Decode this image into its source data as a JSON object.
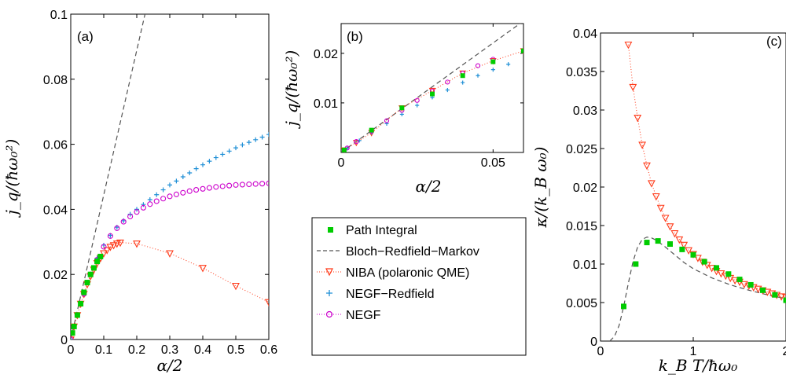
{
  "colors": {
    "path_integral": "#00cc00",
    "brm": "#555555",
    "niba": "#ff3b1a",
    "negf_redfield": "#1f8fd6",
    "negf": "#cc00cc"
  },
  "legend": [
    {
      "key": "path_integral",
      "label": "Path Integral",
      "marker": "square"
    },
    {
      "key": "brm",
      "label": "Bloch−Redfield−Markov",
      "marker": "dashed"
    },
    {
      "key": "niba",
      "label": "NIBA (polaronic QME)",
      "marker": "triangle-down"
    },
    {
      "key": "negf_redfield",
      "label": "NEGF−Redfield",
      "marker": "plus"
    },
    {
      "key": "negf",
      "label": "NEGF",
      "marker": "circle"
    }
  ],
  "chart_data": [
    {
      "id": "a",
      "panel_label": "(a)",
      "type": "scatter",
      "xlabel": "α/2",
      "ylabel": "j_q/(ħω₀²)",
      "xlim": [
        0,
        0.6
      ],
      "ylim": [
        0,
        0.1
      ],
      "xticks": [
        0,
        0.1,
        0.2,
        0.3,
        0.4,
        0.5,
        0.6
      ],
      "xtick_labels": [
        "0",
        "0.1",
        "0.2",
        "0.3",
        "0.4",
        "0.5",
        "0.6"
      ],
      "yticks": [
        0,
        0.02,
        0.04,
        0.06,
        0.08,
        0.1
      ],
      "ytick_labels": [
        "0",
        "0.02",
        "0.04",
        "0.06",
        "0.08",
        "0.1"
      ],
      "series": [
        {
          "key": "brm",
          "style": "dashed",
          "x": [
            0,
            0.225
          ],
          "y": [
            0,
            0.1
          ]
        },
        {
          "key": "niba",
          "style": "markers+dotted",
          "x": [
            0,
            0.01,
            0.02,
            0.03,
            0.04,
            0.05,
            0.06,
            0.07,
            0.08,
            0.09,
            0.1,
            0.11,
            0.12,
            0.13,
            0.14,
            0.15,
            0.2,
            0.3,
            0.4,
            0.5,
            0.6
          ],
          "y": [
            0,
            0.004,
            0.0075,
            0.011,
            0.014,
            0.017,
            0.0195,
            0.0215,
            0.0235,
            0.025,
            0.0265,
            0.0275,
            0.0285,
            0.029,
            0.0295,
            0.0298,
            0.0295,
            0.0265,
            0.022,
            0.0165,
            0.0115
          ]
        },
        {
          "key": "negf_redfield",
          "style": "markers",
          "x": [
            0,
            0.02,
            0.04,
            0.06,
            0.08,
            0.1,
            0.12,
            0.14,
            0.16,
            0.18,
            0.2,
            0.22,
            0.24,
            0.26,
            0.28,
            0.3,
            0.32,
            0.34,
            0.36,
            0.38,
            0.4,
            0.42,
            0.44,
            0.46,
            0.48,
            0.5,
            0.52,
            0.54,
            0.56,
            0.58,
            0.6
          ],
          "y": [
            0,
            0.0075,
            0.014,
            0.02,
            0.025,
            0.029,
            0.032,
            0.0345,
            0.0365,
            0.0385,
            0.04,
            0.0415,
            0.043,
            0.0445,
            0.046,
            0.0475,
            0.0487,
            0.05,
            0.0512,
            0.0525,
            0.0537,
            0.0548,
            0.0559,
            0.0569,
            0.0579,
            0.0589,
            0.0598,
            0.0606,
            0.0614,
            0.0622,
            0.063
          ]
        },
        {
          "key": "negf",
          "style": "markers",
          "x": [
            0,
            0.02,
            0.04,
            0.06,
            0.08,
            0.1,
            0.12,
            0.14,
            0.16,
            0.18,
            0.2,
            0.22,
            0.24,
            0.26,
            0.28,
            0.3,
            0.32,
            0.34,
            0.36,
            0.38,
            0.4,
            0.42,
            0.44,
            0.46,
            0.48,
            0.5,
            0.52,
            0.54,
            0.56,
            0.58,
            0.6
          ],
          "y": [
            0,
            0.0075,
            0.014,
            0.02,
            0.0245,
            0.0285,
            0.0318,
            0.0342,
            0.0362,
            0.0378,
            0.0392,
            0.0405,
            0.0416,
            0.0425,
            0.0433,
            0.044,
            0.0446,
            0.0451,
            0.0456,
            0.046,
            0.0463,
            0.0466,
            0.0469,
            0.0471,
            0.0473,
            0.0475,
            0.0476,
            0.0477,
            0.0478,
            0.0479,
            0.048
          ]
        },
        {
          "key": "path_integral",
          "style": "markers",
          "x": [
            0.005,
            0.01,
            0.02,
            0.03,
            0.04,
            0.05,
            0.06,
            0.07,
            0.08,
            0.09
          ],
          "y": [
            0.002,
            0.004,
            0.0075,
            0.011,
            0.0145,
            0.0175,
            0.02,
            0.022,
            0.024,
            0.0255
          ]
        }
      ]
    },
    {
      "id": "b",
      "panel_label": "(b)",
      "type": "scatter",
      "xlabel": "α/2",
      "ylabel": "j_q/(ħω₀²)",
      "xlim": [
        0,
        0.06
      ],
      "ylim": [
        0,
        0.026
      ],
      "xticks": [
        0,
        0.05
      ],
      "xtick_labels": [
        "0",
        "0.05"
      ],
      "yticks": [
        0.01,
        0.02
      ],
      "ytick_labels": [
        "0.01",
        "0.02"
      ],
      "series": [
        {
          "key": "brm",
          "style": "dashed",
          "x": [
            0,
            0.06
          ],
          "y": [
            0,
            0.0265
          ]
        },
        {
          "key": "niba",
          "style": "markers+dotted",
          "x": [
            0.001,
            0.005,
            0.01,
            0.02,
            0.03,
            0.04,
            0.05,
            0.06
          ],
          "y": [
            0.0005,
            0.002,
            0.004,
            0.009,
            0.0125,
            0.016,
            0.0185,
            0.0205
          ]
        },
        {
          "key": "negf_redfield",
          "style": "markers",
          "x": [
            0.002,
            0.006,
            0.01,
            0.015,
            0.02,
            0.025,
            0.03,
            0.035,
            0.04,
            0.045,
            0.05,
            0.055
          ],
          "y": [
            0.0008,
            0.0024,
            0.004,
            0.0058,
            0.0077,
            0.0095,
            0.0111,
            0.0126,
            0.0141,
            0.0155,
            0.0167,
            0.0178
          ]
        },
        {
          "key": "negf",
          "style": "markers",
          "x": [
            0.002,
            0.005,
            0.01,
            0.015,
            0.02,
            0.025,
            0.03,
            0.035,
            0.04,
            0.045,
            0.05,
            0.06
          ],
          "y": [
            0.0009,
            0.0022,
            0.0043,
            0.0064,
            0.0085,
            0.0105,
            0.0124,
            0.0142,
            0.016,
            0.0175,
            0.0188,
            0.0205
          ]
        },
        {
          "key": "path_integral",
          "style": "markers",
          "x": [
            0.001,
            0.01,
            0.02,
            0.03,
            0.04,
            0.05,
            0.06
          ],
          "y": [
            0.0005,
            0.0045,
            0.009,
            0.0118,
            0.0155,
            0.0183,
            0.0205
          ]
        }
      ]
    },
    {
      "id": "c",
      "panel_label": "(c)",
      "type": "scatter",
      "xlabel": "k_B T/ħω₀",
      "ylabel": "κ/(k_B ω₀)",
      "xlim": [
        0,
        2
      ],
      "ylim": [
        0,
        0.04
      ],
      "xticks": [
        0,
        1,
        2
      ],
      "xtick_labels": [
        "0",
        "1",
        "2"
      ],
      "yticks": [
        0,
        0.005,
        0.01,
        0.015,
        0.02,
        0.025,
        0.03,
        0.035,
        0.04
      ],
      "ytick_labels": [
        "0",
        "0.005",
        "0.01",
        "0.015",
        "0.02",
        "0.025",
        "0.03",
        "0.035",
        "0.04"
      ],
      "series": [
        {
          "key": "brm",
          "style": "dashed",
          "x": [
            0.1,
            0.15,
            0.2,
            0.25,
            0.3,
            0.35,
            0.4,
            0.45,
            0.5,
            0.55,
            0.6,
            0.7,
            0.8,
            0.9,
            1.0,
            1.2,
            1.4,
            1.6,
            1.8,
            2.0
          ],
          "y": [
            0.0,
            0.0006,
            0.002,
            0.0045,
            0.0075,
            0.0103,
            0.0122,
            0.0132,
            0.0135,
            0.0134,
            0.0131,
            0.0122,
            0.0112,
            0.0102,
            0.0094,
            0.0082,
            0.0073,
            0.0066,
            0.006,
            0.0055
          ]
        },
        {
          "key": "niba",
          "style": "markers+dotted",
          "x": [
            0.3,
            0.35,
            0.4,
            0.45,
            0.5,
            0.55,
            0.6,
            0.65,
            0.7,
            0.75,
            0.8,
            0.85,
            0.9,
            0.95,
            1.0,
            1.05,
            1.1,
            1.15,
            1.2,
            1.25,
            1.3,
            1.35,
            1.4,
            1.45,
            1.5,
            1.55,
            1.6,
            1.65,
            1.7,
            1.75,
            1.8,
            1.85,
            1.9,
            1.95,
            2.0
          ],
          "y": [
            0.0385,
            0.033,
            0.029,
            0.0255,
            0.0228,
            0.0205,
            0.0188,
            0.0173,
            0.016,
            0.0149,
            0.014,
            0.0132,
            0.0125,
            0.0118,
            0.0113,
            0.0108,
            0.0103,
            0.0099,
            0.0095,
            0.0091,
            0.0088,
            0.0085,
            0.0082,
            0.0079,
            0.0077,
            0.0074,
            0.0072,
            0.007,
            0.0068,
            0.0066,
            0.0064,
            0.0062,
            0.006,
            0.0058,
            0.0057
          ]
        },
        {
          "key": "path_integral",
          "style": "markers",
          "x": [
            0.25,
            0.38,
            0.5,
            0.62,
            0.75,
            0.88,
            1.0,
            1.12,
            1.25,
            1.38,
            1.5,
            1.62,
            1.75,
            1.88,
            2.0
          ],
          "y": [
            0.0045,
            0.01,
            0.0128,
            0.013,
            0.0126,
            0.0119,
            0.0112,
            0.0103,
            0.0095,
            0.0087,
            0.008,
            0.0073,
            0.0066,
            0.006,
            0.0053
          ]
        }
      ]
    }
  ]
}
